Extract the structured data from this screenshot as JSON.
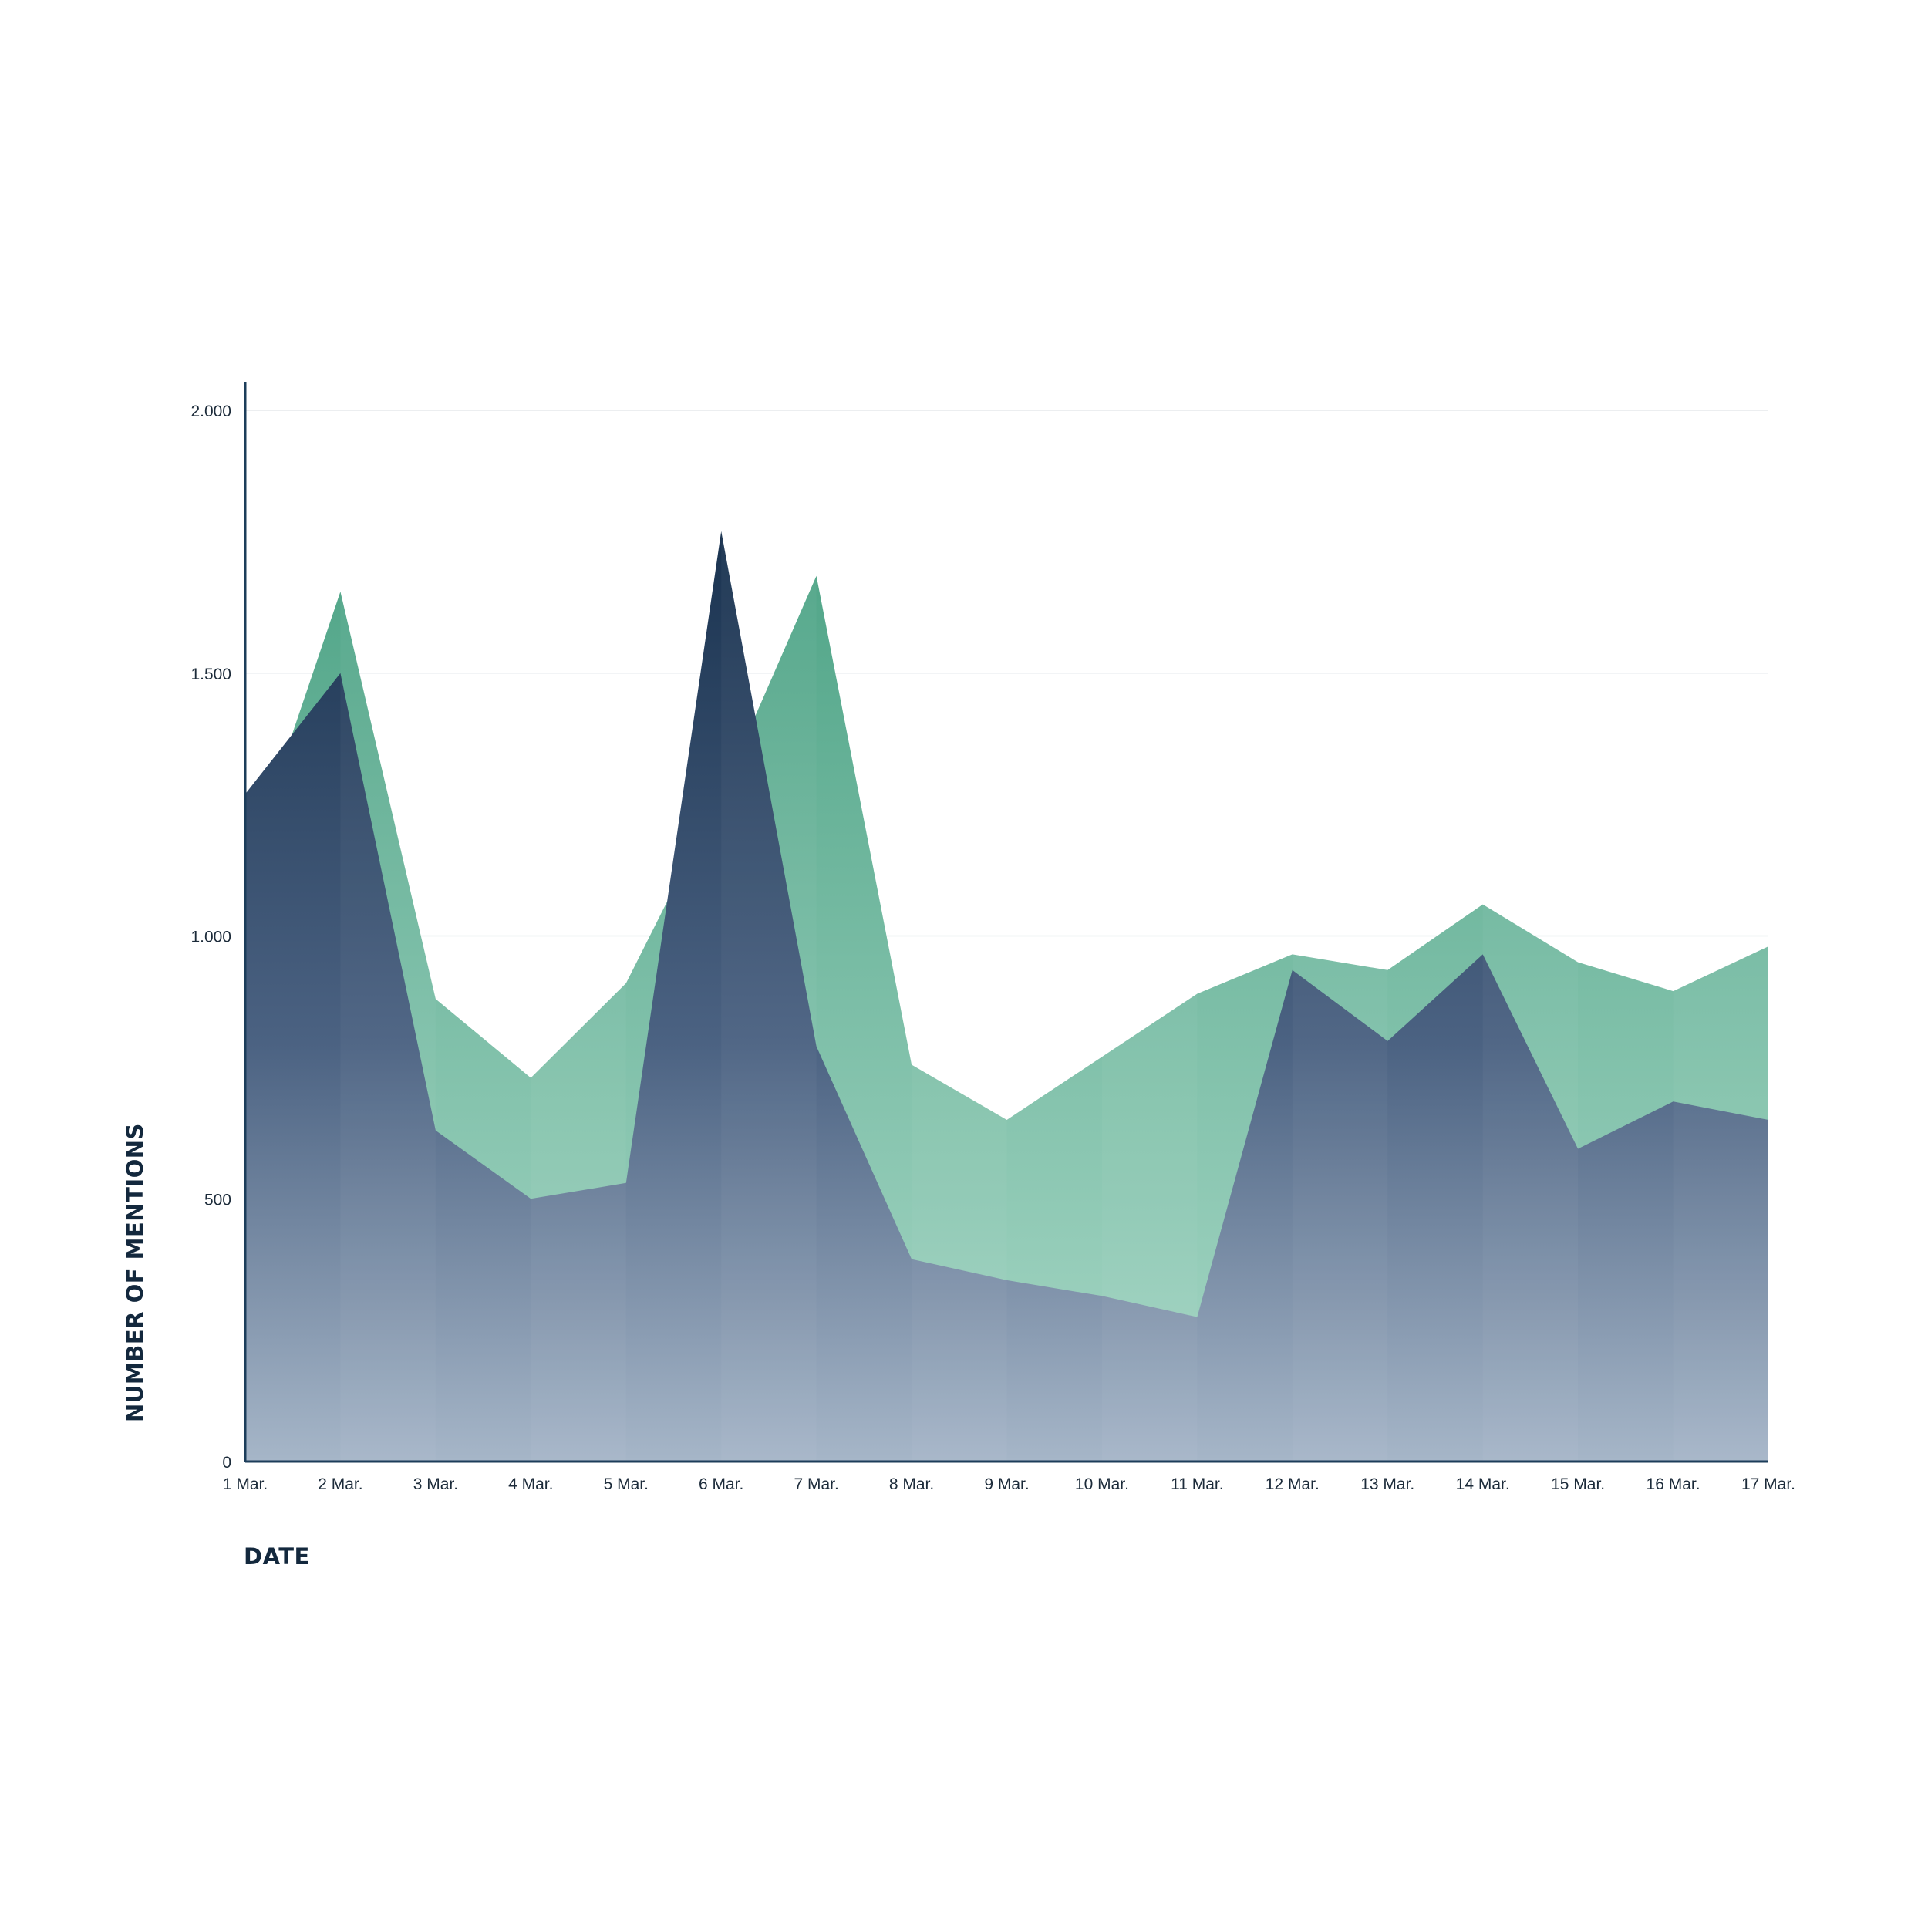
{
  "chart_data": {
    "type": "area",
    "xlabel": "DATE",
    "ylabel": "NUMBER OF MENTIONS",
    "ylim": [
      0,
      2000
    ],
    "yticks": [
      0,
      500,
      1000,
      1500,
      2000
    ],
    "ytick_labels": [
      "0",
      "500",
      "1.000",
      "1.500",
      "2.000"
    ],
    "categories": [
      "1 Mar.",
      "2 Mar.",
      "3 Mar.",
      "4 Mar.",
      "5 Mar.",
      "6 Mar.",
      "7 Mar.",
      "8 Mar.",
      "9 Mar.",
      "10 Mar.",
      "11 Mar.",
      "12 Mar.",
      "13 Mar.",
      "14 Mar.",
      "15 Mar.",
      "16 Mar.",
      "17 Mar."
    ],
    "series": [
      {
        "color": "#5bab90",
        "values": [
          1120,
          1655,
          880,
          730,
          910,
          1270,
          1685,
          755,
          650,
          770,
          890,
          965,
          935,
          1060,
          950,
          895,
          980
        ]
      },
      {
        "color": "#1b3a5c",
        "values": [
          1270,
          1500,
          630,
          500,
          530,
          1770,
          790,
          385,
          345,
          315,
          275,
          935,
          800,
          965,
          595,
          685,
          650
        ]
      }
    ],
    "grid": true,
    "legend": "none"
  }
}
